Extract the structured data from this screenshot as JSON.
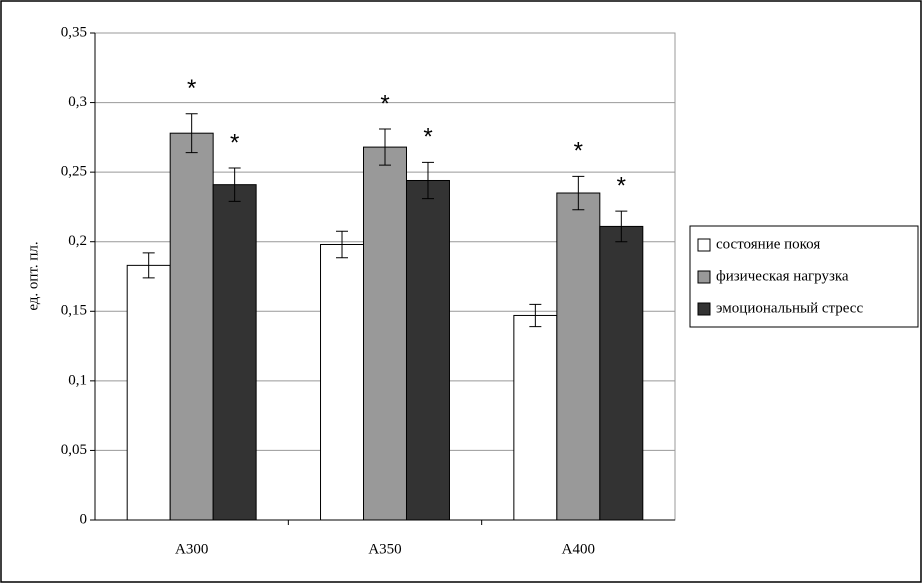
{
  "chart_data": {
    "type": "bar",
    "y_label": "ед. опт. пл.",
    "categories": [
      "A300",
      "A350",
      "A400"
    ],
    "series": [
      {
        "name": "состояние покоя",
        "color": "#ffffff",
        "values": [
          0.183,
          0.198,
          0.147
        ],
        "errors": [
          0.009,
          0.0095,
          0.008
        ]
      },
      {
        "name": "физическая нагрузка",
        "color": "#999999",
        "values": [
          0.278,
          0.268,
          0.235
        ],
        "errors": [
          0.014,
          0.013,
          0.012
        ],
        "annotations": [
          "*",
          "*",
          "*"
        ]
      },
      {
        "name": "эмоциональный стресс",
        "color": "#333333",
        "values": [
          0.241,
          0.244,
          0.211
        ],
        "errors": [
          0.012,
          0.013,
          0.011
        ],
        "annotations": [
          "*",
          "*",
          "*"
        ]
      }
    ],
    "ylim": [
      0,
      0.35
    ],
    "yticks": [
      {
        "value": 0,
        "label": "0"
      },
      {
        "value": 0.05,
        "label": "0,05"
      },
      {
        "value": 0.1,
        "label": "0,1"
      },
      {
        "value": 0.15,
        "label": "0,15"
      },
      {
        "value": 0.2,
        "label": "0,2"
      },
      {
        "value": 0.25,
        "label": "0,25"
      },
      {
        "value": 0.3,
        "label": "0,3"
      },
      {
        "value": 0.35,
        "label": "0,35"
      }
    ],
    "grid": true,
    "legend": "right"
  }
}
